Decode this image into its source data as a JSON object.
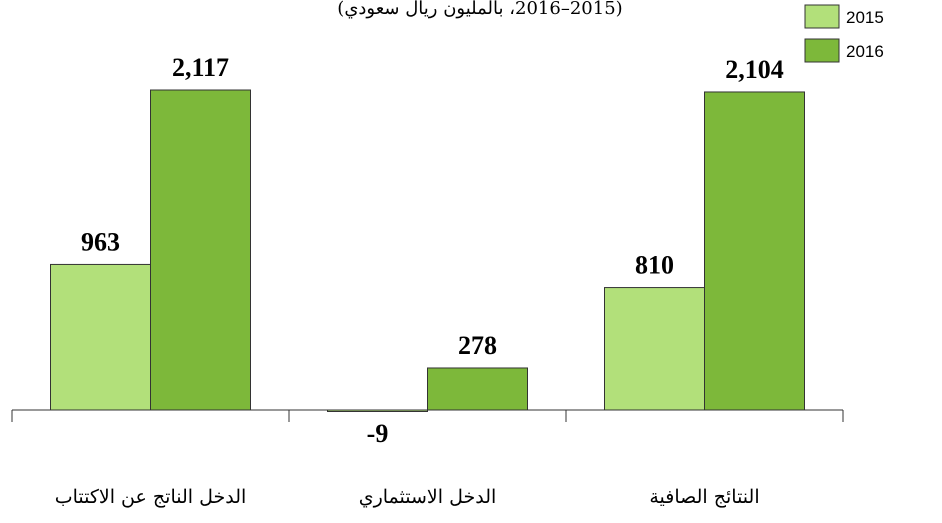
{
  "chart_data": {
    "type": "bar",
    "title": "(2015–2016، بالمليون ريال سعودي)",
    "categories": [
      "الدخل الناتج عن الاكتتاب",
      "الدخل الاستثماري",
      "النتائج الصافية"
    ],
    "series": [
      {
        "name": "2015",
        "color": "#b2e07a",
        "values": [
          963,
          -9,
          810
        ]
      },
      {
        "name": "2016",
        "color": "#7db83a",
        "values": [
          2117,
          278,
          2104
        ],
        "value_labels": [
          "2,117",
          "278",
          "2,104"
        ]
      }
    ],
    "legend": "top-right"
  }
}
